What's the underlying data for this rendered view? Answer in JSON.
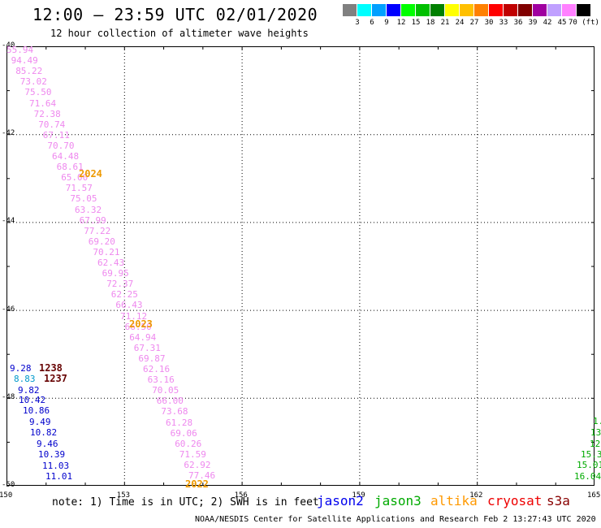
{
  "header": {
    "title": "12:00 – 23:59 UTC 02/01/2020",
    "subtitle": "12 hour collection of altimeter wave heights"
  },
  "color_scale": {
    "labels": [
      "3",
      "6",
      "9",
      "12",
      "15",
      "18",
      "21",
      "24",
      "27",
      "30",
      "33",
      "36",
      "39",
      "42",
      "45",
      "70 (ft)"
    ],
    "colors": [
      "#808080",
      "#00ffff",
      "#00a0ff",
      "#0000ff",
      "#00ff00",
      "#00c000",
      "#008000",
      "#ffff00",
      "#ffc000",
      "#ff8000",
      "#ff0000",
      "#c00000",
      "#800000",
      "#a000a0",
      "#c0a0ff",
      "#ff80ff",
      "#000000"
    ]
  },
  "map": {
    "lon_labels": [
      "150",
      "153",
      "156",
      "159",
      "162",
      "165"
    ],
    "lat_labels": [
      "-40",
      "-42",
      "-44",
      "-46",
      "-48",
      "-50"
    ],
    "lon_range": [
      150,
      165
    ],
    "lat_range": [
      -50,
      -40
    ],
    "grid": "dotted"
  },
  "tracks": [
    {
      "satellite": "altika",
      "color": "#ee88ee",
      "values": [
        "55.94",
        "94.49",
        "85.22",
        "73.02",
        "75.50",
        "71.64",
        "72.38",
        "70.74",
        "67.11",
        "70.70",
        "64.48",
        "68.61",
        "65.00",
        "71.57",
        "75.05",
        "63.32",
        "67.99",
        "77.22",
        "69.20",
        "70.21",
        "62.43",
        "69.95",
        "72.37",
        "62.25",
        "66.43",
        "71.12",
        "66.50",
        "64.94",
        "67.31",
        "69.87",
        "62.16",
        "63.16",
        "70.05",
        "66.00",
        "73.68",
        "61.28",
        "69.06",
        "60.26",
        "71.59",
        "62.92",
        "77.46"
      ]
    },
    {
      "satellite": "jason2",
      "color": "#0000cc",
      "values": [
        "9.28",
        "8.83",
        "9.82",
        "10.42",
        "10.86",
        "9.49",
        "10.82",
        "9.46",
        "10.39",
        "11.03",
        "11.01"
      ]
    },
    {
      "satellite": "jason3",
      "color": "#00aa00",
      "values": [
        "1.",
        "13",
        "12.",
        "15.3",
        "15.01",
        "16.04"
      ]
    }
  ],
  "pass_labels": [
    {
      "text": "2024",
      "color": "#ee9900"
    },
    {
      "text": "2023",
      "color": "#ee9900"
    },
    {
      "text": "2022",
      "color": "#ee9900"
    },
    {
      "text": "1238",
      "color": "#660000"
    },
    {
      "text": "1237",
      "color": "#660000"
    }
  ],
  "footer": {
    "note": "note: 1) Time is in UTC; 2) SWH is in feet",
    "satellites": [
      {
        "name": "jason2",
        "color": "#0000ee"
      },
      {
        "name": "jason3",
        "color": "#00aa00"
      },
      {
        "name": "altika",
        "color": "#ff9900"
      },
      {
        "name": "cryosat",
        "color": "#ee0000"
      },
      {
        "name": "s3a",
        "color": "#880000"
      }
    ],
    "credit": "NOAA/NESDIS Center for Satellite Applications and Research    Feb  2 13:27:43 UTC 2020"
  }
}
